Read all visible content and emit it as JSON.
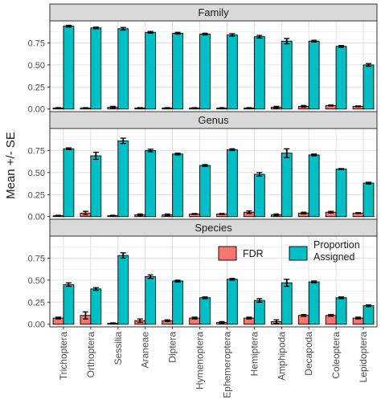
{
  "chart_data": {
    "type": "bar",
    "layout": "faceted-grouped-bar",
    "ylabel": "Mean +/- SE",
    "xlabel": "",
    "ylim": [
      0,
      1
    ],
    "yticks": [
      0.0,
      0.25,
      0.5,
      0.75
    ],
    "ytick_labels": [
      "0.00",
      "0.25",
      "0.50",
      "0.75"
    ],
    "grid": true,
    "legend_position": "inside-bottom-panel-right",
    "categories": [
      "Trichoptera",
      "Orthoptera",
      "Sessilia",
      "Araneae",
      "Diptera",
      "Hymenoptera",
      "Ephemeroptera",
      "Hemiptera",
      "Amphipoda",
      "Decapoda",
      "Coleoptera",
      "Lepidoptera"
    ],
    "series_meta": [
      {
        "name": "FDR",
        "label_lines": [
          "FDR"
        ],
        "color": "#F8766D"
      },
      {
        "name": "Proportion Assigned",
        "label_lines": [
          "Proportion",
          "Assigned"
        ],
        "color": "#00BFC4"
      }
    ],
    "facets": [
      {
        "name": "Family",
        "series": [
          {
            "name": "FDR",
            "values": [
              0.01,
              0.01,
              0.02,
              0.01,
              0.01,
              0.01,
              0.01,
              0.01,
              0.02,
              0.03,
              0.04,
              0.03
            ],
            "errors": [
              0.005,
              0.005,
              0.01,
              0.005,
              0.005,
              0.005,
              0.005,
              0.005,
              0.01,
              0.01,
              0.005,
              0.005
            ]
          },
          {
            "name": "Proportion Assigned",
            "values": [
              0.94,
              0.92,
              0.91,
              0.87,
              0.86,
              0.85,
              0.84,
              0.82,
              0.77,
              0.77,
              0.71,
              0.5
            ],
            "errors": [
              0.01,
              0.01,
              0.015,
              0.01,
              0.01,
              0.01,
              0.015,
              0.015,
              0.03,
              0.01,
              0.01,
              0.015
            ]
          }
        ]
      },
      {
        "name": "Genus",
        "series": [
          {
            "name": "FDR",
            "values": [
              0.01,
              0.04,
              0.01,
              0.02,
              0.02,
              0.03,
              0.03,
              0.05,
              0.02,
              0.04,
              0.05,
              0.04
            ],
            "errors": [
              0.005,
              0.02,
              0.005,
              0.01,
              0.01,
              0.005,
              0.005,
              0.015,
              0.01,
              0.01,
              0.01,
              0.005
            ]
          },
          {
            "name": "Proportion Assigned",
            "values": [
              0.77,
              0.69,
              0.86,
              0.75,
              0.71,
              0.58,
              0.76,
              0.48,
              0.72,
              0.7,
              0.54,
              0.38
            ],
            "errors": [
              0.01,
              0.04,
              0.03,
              0.015,
              0.01,
              0.01,
              0.01,
              0.02,
              0.05,
              0.01,
              0.005,
              0.01
            ]
          }
        ]
      },
      {
        "name": "Species",
        "series": [
          {
            "name": "FDR",
            "values": [
              0.07,
              0.1,
              0.01,
              0.04,
              0.04,
              0.07,
              0.02,
              0.07,
              0.03,
              0.1,
              0.1,
              0.07
            ],
            "errors": [
              0.01,
              0.04,
              0.005,
              0.02,
              0.01,
              0.01,
              0.01,
              0.01,
              0.02,
              0.01,
              0.01,
              0.01
            ]
          },
          {
            "name": "Proportion Assigned",
            "values": [
              0.45,
              0.4,
              0.78,
              0.54,
              0.49,
              0.3,
              0.51,
              0.27,
              0.47,
              0.48,
              0.3,
              0.21
            ],
            "errors": [
              0.02,
              0.015,
              0.03,
              0.02,
              0.01,
              0.01,
              0.01,
              0.02,
              0.04,
              0.01,
              0.01,
              0.01
            ]
          }
        ]
      }
    ]
  }
}
